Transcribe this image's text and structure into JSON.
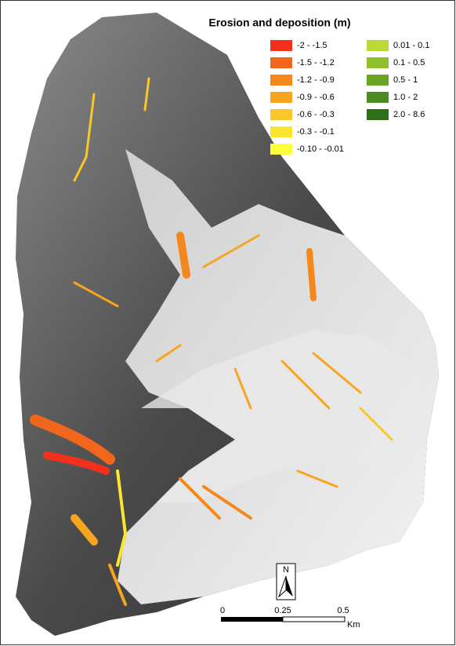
{
  "title": "Erosion and deposition (m)",
  "legend": {
    "items": [
      {
        "label": "-2 - -1.5",
        "color": "#f2301c"
      },
      {
        "label": "-1.5 - -1.2",
        "color": "#f2661c"
      },
      {
        "label": "-1.2 - -0.9",
        "color": "#f5881d"
      },
      {
        "label": "-0.9 - -0.6",
        "color": "#f7a51f"
      },
      {
        "label": "-0.6 - -0.3",
        "color": "#fbc62a"
      },
      {
        "label": "-0.3 - -0.1",
        "color": "#fde52f"
      },
      {
        "label": "-0.10 - -0.01",
        "color": "#ffff3c"
      },
      {
        "label": "0.01 - 0.1",
        "color": "#b8d936"
      },
      {
        "label": "0.1 - 0.5",
        "color": "#8fbf2a"
      },
      {
        "label": "0.5 - 1",
        "color": "#6aa424"
      },
      {
        "label": "1.0 - 2",
        "color": "#4c8c22"
      },
      {
        "label": "2.0 - 8.6",
        "color": "#2f6f1a"
      }
    ]
  },
  "north_arrow": {
    "label": "N"
  },
  "scale_bar": {
    "labels": [
      "0",
      "0.25",
      "0.5"
    ],
    "unit": "Km"
  }
}
